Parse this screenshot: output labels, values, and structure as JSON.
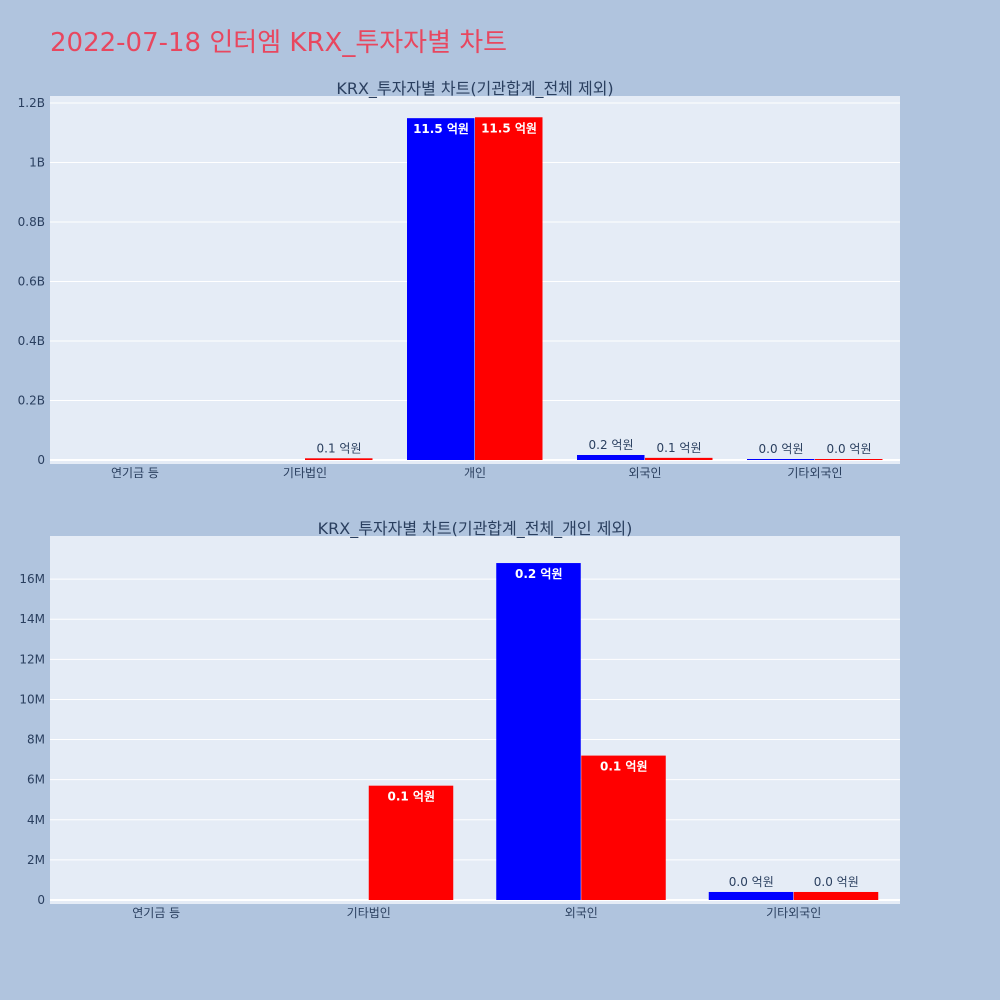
{
  "title": "2022-07-18 인터엠 KRX_투자자별 차트",
  "colors": {
    "background": "#b0c4de",
    "plot": "#e5ecf6",
    "title": "#e8475f",
    "text": "#2a3f5f",
    "buy": "#0000ff",
    "sell": "#ff0000"
  },
  "chart_data": [
    {
      "type": "bar",
      "title": "KRX_투자자별 차트(기관합계_전체 제외)",
      "categories": [
        "연기금 등",
        "기타법인",
        "개인",
        "외국인",
        "기타외국인"
      ],
      "ylim": [
        0,
        1200000000
      ],
      "yticks": [
        0,
        200000000,
        400000000,
        600000000,
        800000000,
        1000000000,
        1200000000
      ],
      "ytick_labels": [
        "0",
        "0.2B",
        "0.4B",
        "0.6B",
        "0.8B",
        "1B",
        "1.2B"
      ],
      "grid": true,
      "legend": "none",
      "series": [
        {
          "color": "#0000ff",
          "values": [
            0,
            0,
            1149000000,
            16800000,
            400000
          ],
          "labels": [
            "",
            "",
            "11.5 억원",
            "0.2 억원",
            "0.0 억원"
          ]
        },
        {
          "color": "#ff0000",
          "values": [
            0,
            5700000,
            1152000000,
            7200000,
            400000
          ],
          "labels": [
            "",
            "0.1 억원",
            "11.5 억원",
            "0.1 억원",
            "0.0 억원"
          ]
        }
      ]
    },
    {
      "type": "bar",
      "title": "KRX_투자자별 차트(기관합계_전체_개인 제외)",
      "categories": [
        "연기금 등",
        "기타법인",
        "외국인",
        "기타외국인"
      ],
      "ylim": [
        0,
        17800000
      ],
      "yticks": [
        0,
        2000000,
        4000000,
        6000000,
        8000000,
        10000000,
        12000000,
        14000000,
        16000000
      ],
      "ytick_labels": [
        "0",
        "2M",
        "4M",
        "6M",
        "8M",
        "10M",
        "12M",
        "14M",
        "16M"
      ],
      "grid": true,
      "legend": "none",
      "series": [
        {
          "color": "#0000ff",
          "values": [
            0,
            0,
            16800000,
            400000
          ],
          "labels": [
            "",
            "",
            "0.2 억원",
            "0.0 억원"
          ]
        },
        {
          "color": "#ff0000",
          "values": [
            0,
            5700000,
            7200000,
            400000
          ],
          "labels": [
            "",
            "0.1 억원",
            "0.1 억원",
            "0.0 억원"
          ]
        }
      ]
    }
  ]
}
